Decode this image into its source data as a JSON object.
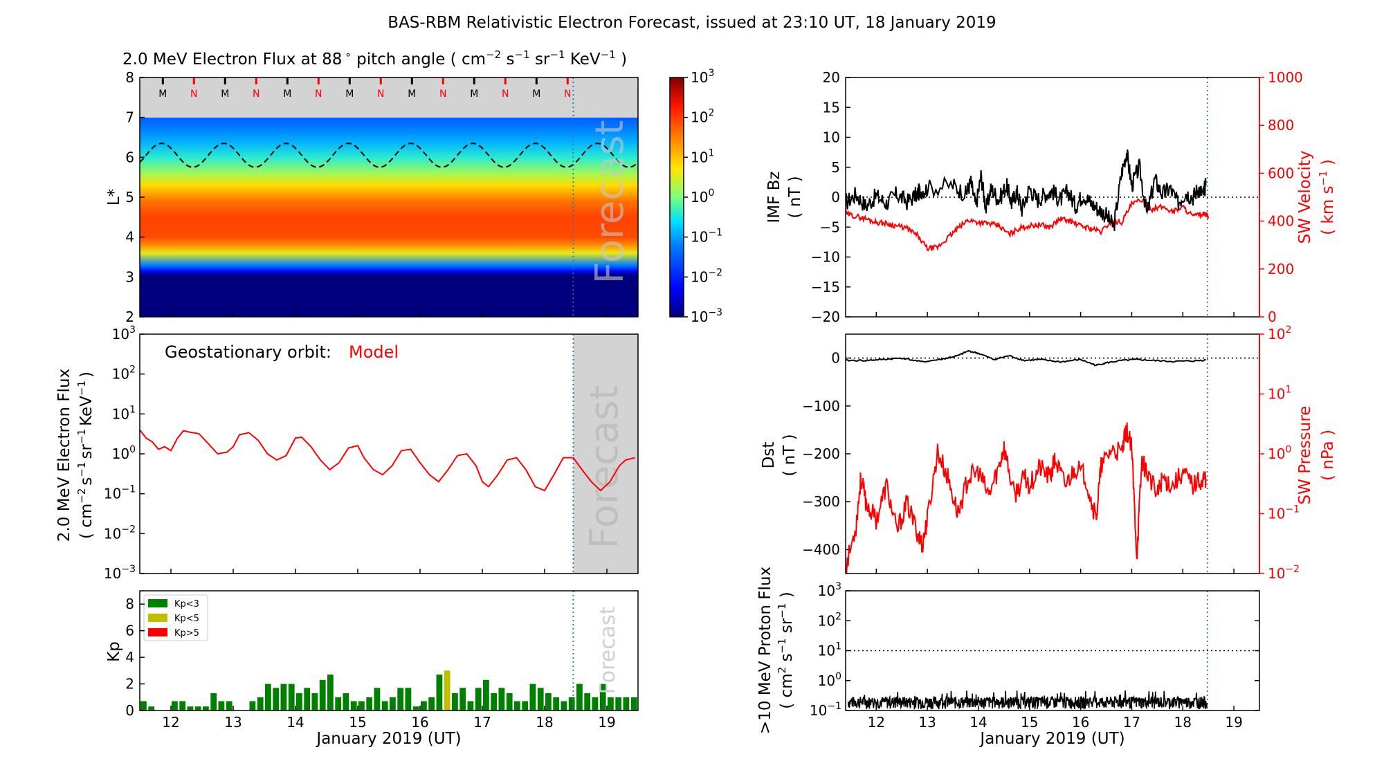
{
  "figure_title": "BAS-RBM Relativistic Electron Forecast, issued at 23:10 UT, 18 January 2019",
  "colors": {
    "model": "#ff0000",
    "kp_low": "#008000",
    "kp_mid": "#bfbf00",
    "kp_high": "#ff0000",
    "panel_gray": "#d3d3d3",
    "now_line": "#1f77b4"
  },
  "chart_data": [
    {
      "id": "lstar-heatmap",
      "type": "heatmap",
      "title_parts": [
        "2.0 MeV Electron Flux at 88",
        "∘",
        " pitch angle ( cm",
        "−2",
        " s",
        "−1",
        " sr",
        "−1",
        " KeV",
        "−1",
        " )"
      ],
      "ylabel": "L*",
      "xlim": [
        11.5,
        19.5
      ],
      "ylim": [
        2,
        8
      ],
      "yticks": [
        "2",
        "3",
        "4",
        "5",
        "6",
        "7",
        "8"
      ],
      "forecast_label": "Forecast",
      "now_x": 18.46,
      "mn_markers": [
        "M",
        "N",
        "M",
        "N",
        "M",
        "N",
        "M",
        "N",
        "M",
        "N",
        "M",
        "N",
        "M",
        "N"
      ],
      "mn_x": [
        11.87,
        12.37,
        12.87,
        13.37,
        13.87,
        14.37,
        14.87,
        15.37,
        15.87,
        16.37,
        16.87,
        17.37,
        17.87,
        18.37
      ],
      "geo_l_mean": 6.05,
      "geo_l_amplitude": 0.3,
      "profile_l": [
        2.0,
        3.05,
        3.15,
        3.3,
        3.6,
        3.8,
        4.0,
        4.5,
        4.9,
        5.3,
        5.6,
        6.0,
        6.4,
        6.8,
        7.0
      ],
      "profile_log_flux": [
        -3,
        -3,
        -2.2,
        -1.2,
        0.6,
        1.4,
        1.9,
        1.95,
        1.6,
        0.8,
        0.2,
        -0.4,
        -0.9,
        -1.3,
        -1.5
      ],
      "colorbar": {
        "ticks_base": [
          "10",
          "10",
          "10",
          "10",
          "10",
          "10",
          "10"
        ],
        "ticks_exp": [
          "3",
          "2",
          "1",
          "0",
          "−1",
          "−2",
          "−3"
        ],
        "range_log": [
          -3,
          3
        ]
      }
    },
    {
      "id": "geo-flux",
      "type": "line",
      "ylabel_line1": "2.0 MeV Electron Flux",
      "ylabel_line2_parts": [
        "( cm",
        "−2",
        "s",
        "−1",
        "sr",
        "−1",
        "KeV",
        "−1",
        ")"
      ],
      "legend_label": "Geostationary orbit:",
      "series_name": "Model",
      "forecast_label": "Forecast",
      "xlim": [
        11.5,
        19.5
      ],
      "ylim_log": [
        -3,
        3
      ],
      "yticks_exp": [
        "−3",
        "−2",
        "−1",
        "0",
        "1",
        "2",
        "3"
      ],
      "x": [
        11.5,
        11.6,
        11.7,
        11.8,
        11.9,
        12.0,
        12.1,
        12.2,
        12.3,
        12.45,
        12.6,
        12.75,
        12.9,
        13.0,
        13.1,
        13.25,
        13.4,
        13.55,
        13.7,
        13.85,
        14.0,
        14.1,
        14.25,
        14.4,
        14.55,
        14.7,
        14.85,
        15.0,
        15.1,
        15.25,
        15.4,
        15.55,
        15.7,
        15.85,
        16.0,
        16.15,
        16.3,
        16.45,
        16.6,
        16.75,
        16.9,
        17.0,
        17.1,
        17.25,
        17.4,
        17.55,
        17.7,
        17.85,
        18.0,
        18.15,
        18.3,
        18.46,
        18.6,
        18.75,
        18.9,
        19.05,
        19.2,
        19.3,
        19.45
      ],
      "values": [
        4.0,
        2.5,
        2.0,
        1.3,
        1.5,
        1.2,
        2.4,
        3.8,
        3.5,
        3.2,
        1.8,
        1.0,
        1.1,
        1.5,
        3.0,
        3.4,
        2.2,
        1.0,
        0.7,
        0.9,
        2.5,
        2.6,
        1.5,
        0.7,
        0.4,
        0.6,
        1.4,
        1.6,
        0.8,
        0.4,
        0.3,
        0.5,
        1.2,
        1.3,
        0.6,
        0.3,
        0.2,
        0.4,
        0.9,
        1.0,
        0.5,
        0.2,
        0.15,
        0.3,
        0.7,
        0.8,
        0.4,
        0.15,
        0.12,
        0.3,
        0.8,
        0.8,
        0.4,
        0.2,
        0.12,
        0.2,
        0.5,
        0.7,
        0.8
      ]
    },
    {
      "id": "kp-index",
      "type": "bar",
      "ylabel": "Kp",
      "forecast_label": "Forecast",
      "xlim": [
        11.5,
        19.5
      ],
      "ylim": [
        0,
        9
      ],
      "yticks": [
        "0",
        "2",
        "4",
        "6",
        "8"
      ],
      "xticks": [
        "12",
        "13",
        "14",
        "15",
        "16",
        "17",
        "18",
        "19"
      ],
      "xlabel": "January 2019 (UT)",
      "legend": [
        "Kp<3",
        "Kp<5",
        "Kp>5"
      ],
      "bar_start": 11.5,
      "bar_step": 0.125,
      "values": [
        0.7,
        0.3,
        0.0,
        0.0,
        0.7,
        0.7,
        0.3,
        0.3,
        0.3,
        1.3,
        0.7,
        0.7,
        0.0,
        0.0,
        0.7,
        1.0,
        2.0,
        1.7,
        2.0,
        2.0,
        1.3,
        1.7,
        1.3,
        2.3,
        2.7,
        1.0,
        1.3,
        0.7,
        0.7,
        1.0,
        1.7,
        0.7,
        1.0,
        1.7,
        1.7,
        0.3,
        0.7,
        1.0,
        2.7,
        3.0,
        1.3,
        1.7,
        0.7,
        1.7,
        2.3,
        1.3,
        1.7,
        1.3,
        0.7,
        0.7,
        2.0,
        1.7,
        1.3,
        1.0,
        0.7,
        1.0,
        2.0,
        1.3,
        1.0,
        2.0,
        1.0,
        1.0,
        1.0,
        1.0
      ]
    },
    {
      "id": "imf-sw",
      "type": "line",
      "ylabel_left": [
        "IMF Bz",
        "( nT )"
      ],
      "ylabel_right_line1": "SW Velocity",
      "ylabel_right_line2_parts": [
        "( km s",
        "−1",
        " )"
      ],
      "xlim": [
        11.4,
        19.5
      ],
      "ylim_left": [
        -20,
        20
      ],
      "ylim_right": [
        0,
        1000
      ],
      "yticks_left": [
        "−20",
        "−15",
        "−10",
        "−5",
        "0",
        "5",
        "10",
        "15",
        "20"
      ],
      "yticks_right": [
        "0",
        "200",
        "400",
        "600",
        "800",
        "1000"
      ],
      "now_x": 18.48,
      "bz": {
        "x": [
          11.4,
          11.6,
          11.8,
          12.0,
          12.2,
          12.4,
          12.6,
          12.8,
          12.85,
          13.0,
          13.5,
          13.75,
          13.85,
          13.95,
          14.05,
          14.15,
          14.25,
          14.4,
          14.55,
          14.65,
          14.75,
          14.85,
          15.0,
          15.15,
          15.3,
          15.45,
          15.6,
          15.75,
          15.9,
          16.05,
          16.2,
          16.35,
          16.5,
          16.65,
          16.8,
          16.9,
          17.0,
          17.15,
          17.3,
          17.45,
          17.6,
          17.75,
          17.9,
          18.05,
          18.2,
          18.3,
          18.4,
          18.45
        ],
        "values": [
          -1.0,
          0.5,
          -1.5,
          0.2,
          -1.0,
          0.5,
          -0.8,
          0.5,
          1.0,
          1.5,
          2.0,
          0.5,
          2.5,
          -1.5,
          3.5,
          -2.0,
          1.5,
          -0.5,
          2.0,
          -1.0,
          1.0,
          -2.0,
          1.5,
          -0.5,
          0.5,
          1.0,
          -0.5,
          1.0,
          -1.5,
          0.5,
          -1.0,
          -2.0,
          -3.0,
          -5.0,
          4.0,
          7.5,
          2.0,
          5.0,
          -3.0,
          3.0,
          0.5,
          1.5,
          -1.0,
          0.8,
          0.0,
          1.5,
          0.5,
          2.0
        ]
      },
      "velocity": {
        "x": [
          11.4,
          11.6,
          11.8,
          12.0,
          12.2,
          12.4,
          12.6,
          12.8,
          13.0,
          13.2,
          13.4,
          13.6,
          13.8,
          14.0,
          14.2,
          14.4,
          14.6,
          14.8,
          15.0,
          15.2,
          15.4,
          15.6,
          15.8,
          16.0,
          16.2,
          16.4,
          16.6,
          16.8,
          17.0,
          17.2,
          17.4,
          17.6,
          17.8,
          18.0,
          18.2,
          18.4,
          18.5
        ],
        "values": [
          430,
          420,
          410,
          395,
          390,
          380,
          370,
          340,
          285,
          290,
          330,
          370,
          405,
          395,
          390,
          380,
          345,
          370,
          380,
          385,
          375,
          410,
          400,
          380,
          370,
          355,
          400,
          395,
          470,
          490,
          450,
          460,
          440,
          460,
          420,
          430,
          420
        ]
      }
    },
    {
      "id": "dst-swp",
      "type": "line",
      "ylabel_left": [
        "Dst",
        "( nT )"
      ],
      "ylabel_right": [
        "SW Pressure",
        "( nPa )"
      ],
      "xlim": [
        11.4,
        19.5
      ],
      "ylim_left": [
        -450,
        50
      ],
      "ylim_right_log": [
        -2,
        2
      ],
      "yticks_left": [
        "−400",
        "−300",
        "−200",
        "−100",
        "0"
      ],
      "yticks_left_values": [
        -400,
        -300,
        -200,
        -100,
        0
      ],
      "yticks_right_exp": [
        "−2",
        "−1",
        "0",
        "1",
        "2"
      ],
      "now_x": 18.48,
      "dst": {
        "x": [
          11.4,
          11.8,
          12.1,
          12.5,
          12.9,
          13.3,
          13.6,
          13.8,
          14.0,
          14.3,
          14.6,
          14.9,
          15.2,
          15.6,
          16.0,
          16.3,
          16.5,
          16.8,
          17.1,
          17.4,
          17.8,
          18.2,
          18.45
        ],
        "values": [
          -5,
          -5,
          -3,
          0,
          -8,
          -2,
          5,
          15,
          10,
          -3,
          5,
          -5,
          -3,
          -8,
          -3,
          -15,
          -10,
          -5,
          -3,
          -5,
          -7,
          -6,
          -4
        ]
      },
      "pressure": {
        "x": [
          11.4,
          11.6,
          11.7,
          11.8,
          12.0,
          12.2,
          12.4,
          12.6,
          12.8,
          12.9,
          13.0,
          13.2,
          13.4,
          13.6,
          13.8,
          14.0,
          14.2,
          14.4,
          14.5,
          14.7,
          14.9,
          15.0,
          15.2,
          15.4,
          15.5,
          15.7,
          15.9,
          16.1,
          16.3,
          16.4,
          16.6,
          16.8,
          16.9,
          17.0,
          17.1,
          17.2,
          17.3,
          17.5,
          17.6,
          17.8,
          18.0,
          18.2,
          18.4,
          18.45
        ],
        "values": [
          0.012,
          0.06,
          0.4,
          0.15,
          0.08,
          0.3,
          0.05,
          0.15,
          0.05,
          0.03,
          0.08,
          1.1,
          0.4,
          0.1,
          0.4,
          0.5,
          0.2,
          0.6,
          1.3,
          0.2,
          0.4,
          0.3,
          0.6,
          0.4,
          0.8,
          0.3,
          0.6,
          0.4,
          0.08,
          0.6,
          1.2,
          1.0,
          2.5,
          1.2,
          0.02,
          0.8,
          0.5,
          0.2,
          0.4,
          0.3,
          0.5,
          0.3,
          0.4,
          0.4
        ]
      }
    },
    {
      "id": "proton-flux",
      "type": "line",
      "ylabel_line1": ">10 MeV Proton Flux",
      "ylabel_line2_parts": [
        "( cm",
        "2",
        " s",
        "−1",
        " sr",
        "−1",
        " )"
      ],
      "xlim": [
        11.4,
        19.5
      ],
      "ylim_log": [
        -1,
        3
      ],
      "yticks_exp": [
        "−1",
        "0",
        "1",
        "2",
        "3"
      ],
      "xticks": [
        "12",
        "13",
        "14",
        "15",
        "16",
        "17",
        "18",
        "19"
      ],
      "xlabel": "January 2019 (UT)",
      "threshold": 10,
      "noise_level": 0.2,
      "now_x": 18.48
    }
  ]
}
